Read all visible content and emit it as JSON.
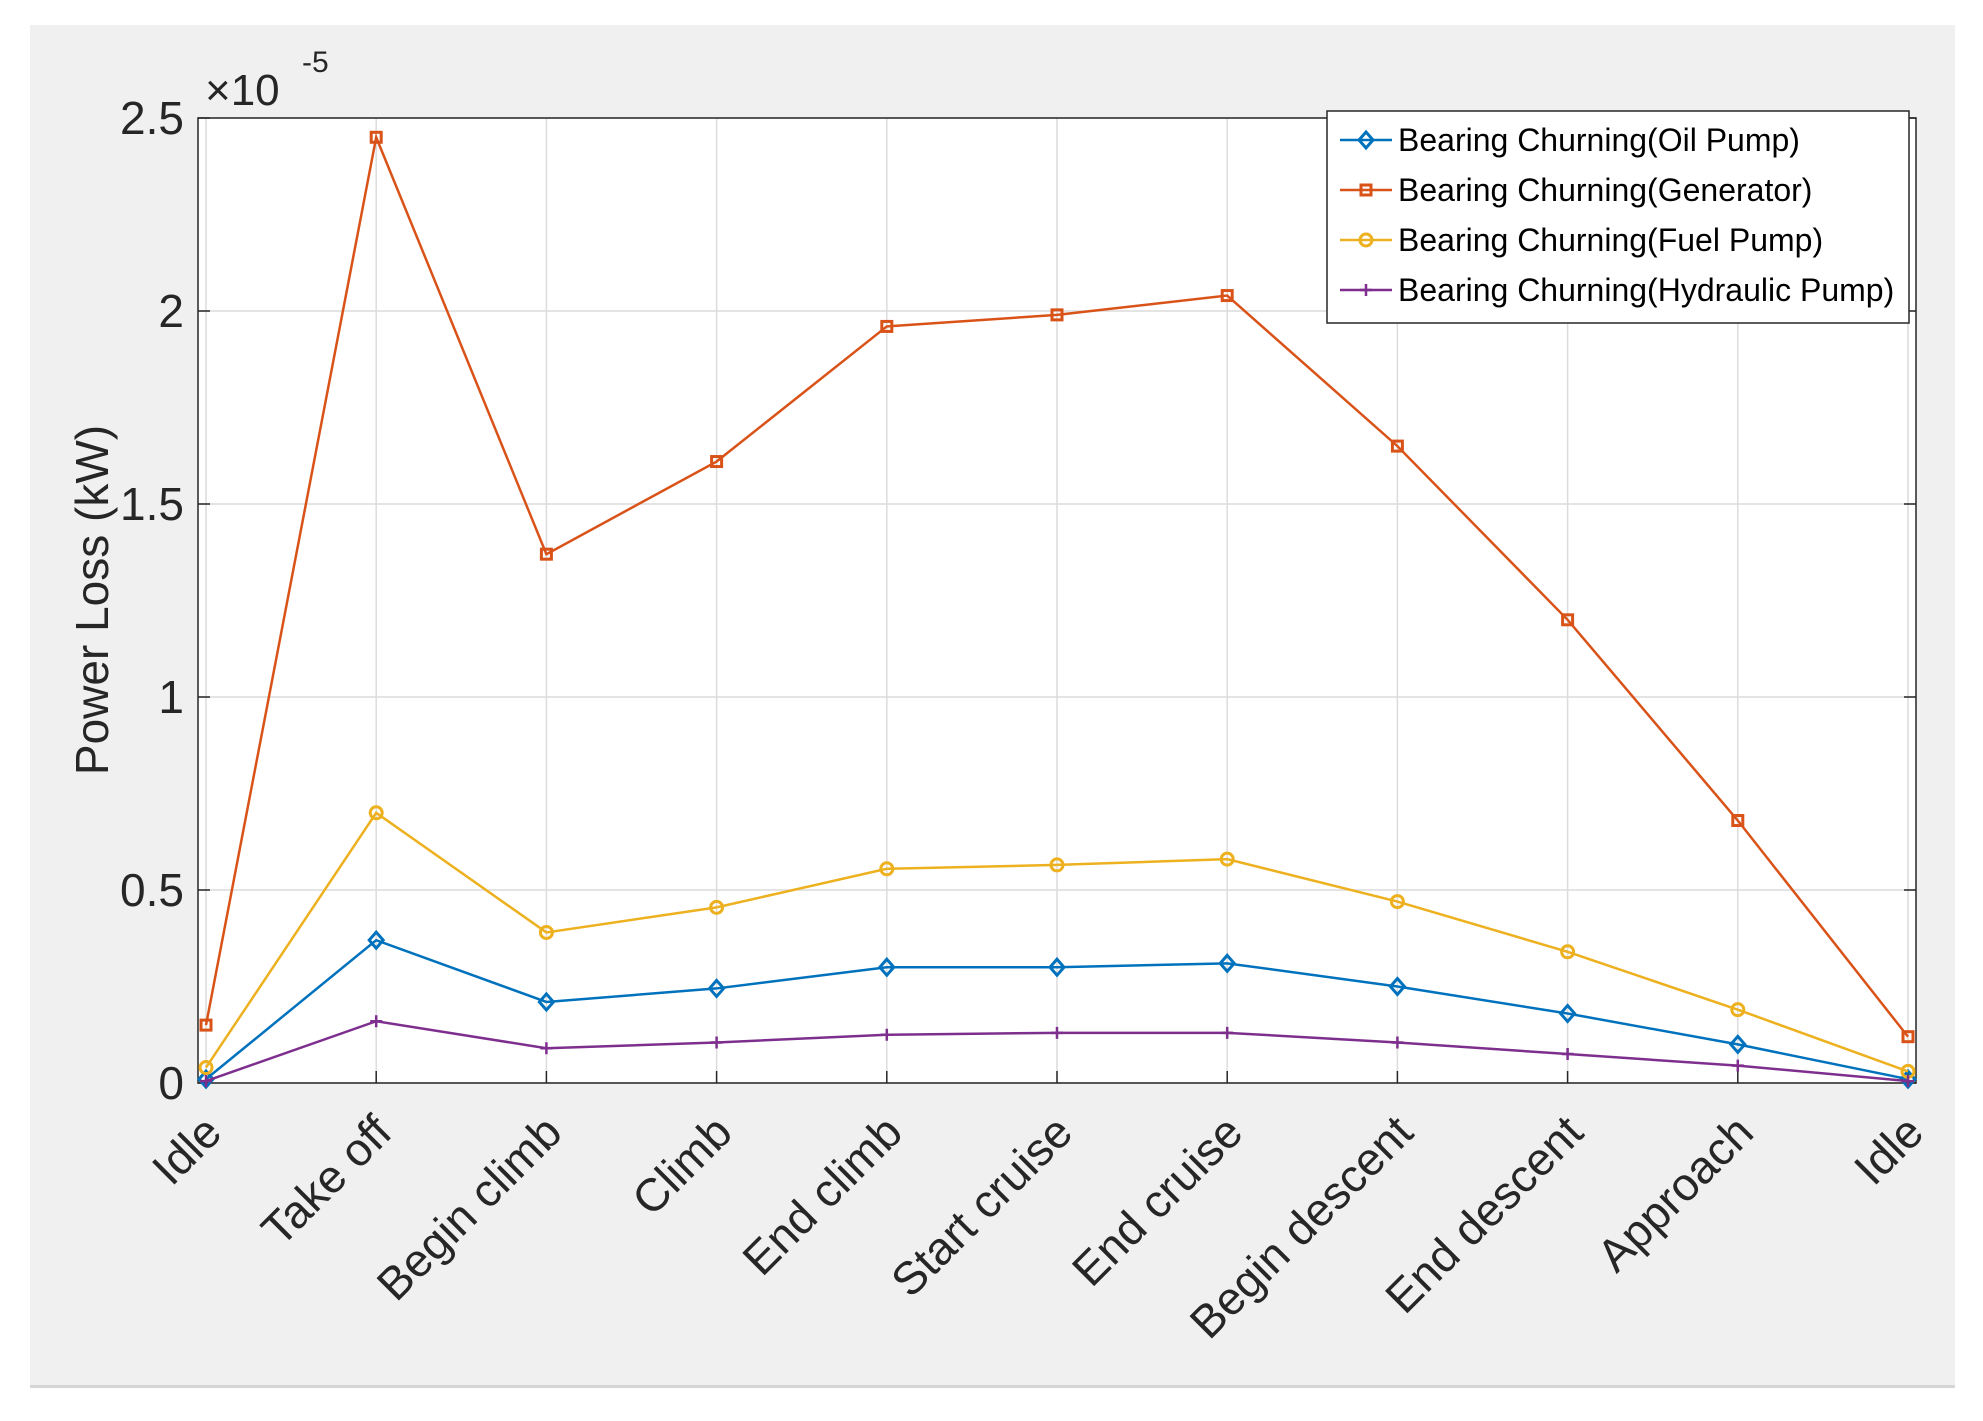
{
  "chart_data": {
    "type": "line",
    "title": "",
    "xlabel": "",
    "ylabel": "Power Loss (kW)",
    "ylim": [
      0,
      2.5
    ],
    "y_exponent": {
      "base": "×10",
      "power": "-5"
    },
    "yticks": [
      "0",
      "0.5",
      "1",
      "1.5",
      "2",
      "2.5"
    ],
    "ytick_values": [
      0,
      0.5,
      1,
      1.5,
      2,
      2.5
    ],
    "grid": true,
    "legend_position": "top-right",
    "categories": [
      "Idle",
      "Take off",
      "Begin climb",
      "Climb",
      "End climb",
      "Start cruise",
      "End cruise",
      "Begin descent",
      "End descent",
      "Approach",
      "Idle"
    ],
    "series": [
      {
        "name": "Bearing Churning(Oil Pump)",
        "color": "#0072BD",
        "marker": "diamond",
        "values": [
          0.01,
          0.37,
          0.21,
          0.245,
          0.3,
          0.3,
          0.31,
          0.25,
          0.18,
          0.1,
          0.01
        ]
      },
      {
        "name": "Bearing Churning(Generator)",
        "color": "#D95319",
        "marker": "square",
        "values": [
          0.15,
          2.45,
          1.37,
          1.61,
          1.96,
          1.99,
          2.04,
          1.65,
          1.2,
          0.68,
          0.12
        ]
      },
      {
        "name": "Bearing Churning(Fuel Pump)",
        "color": "#EDB120",
        "marker": "circle",
        "values": [
          0.04,
          0.7,
          0.39,
          0.455,
          0.555,
          0.565,
          0.58,
          0.47,
          0.34,
          0.19,
          0.03
        ]
      },
      {
        "name": "Bearing Churning(Hydraulic Pump)",
        "color": "#7E2F8E",
        "marker": "plus",
        "values": [
          0.005,
          0.16,
          0.09,
          0.105,
          0.125,
          0.13,
          0.13,
          0.105,
          0.075,
          0.045,
          0.005
        ]
      }
    ]
  }
}
